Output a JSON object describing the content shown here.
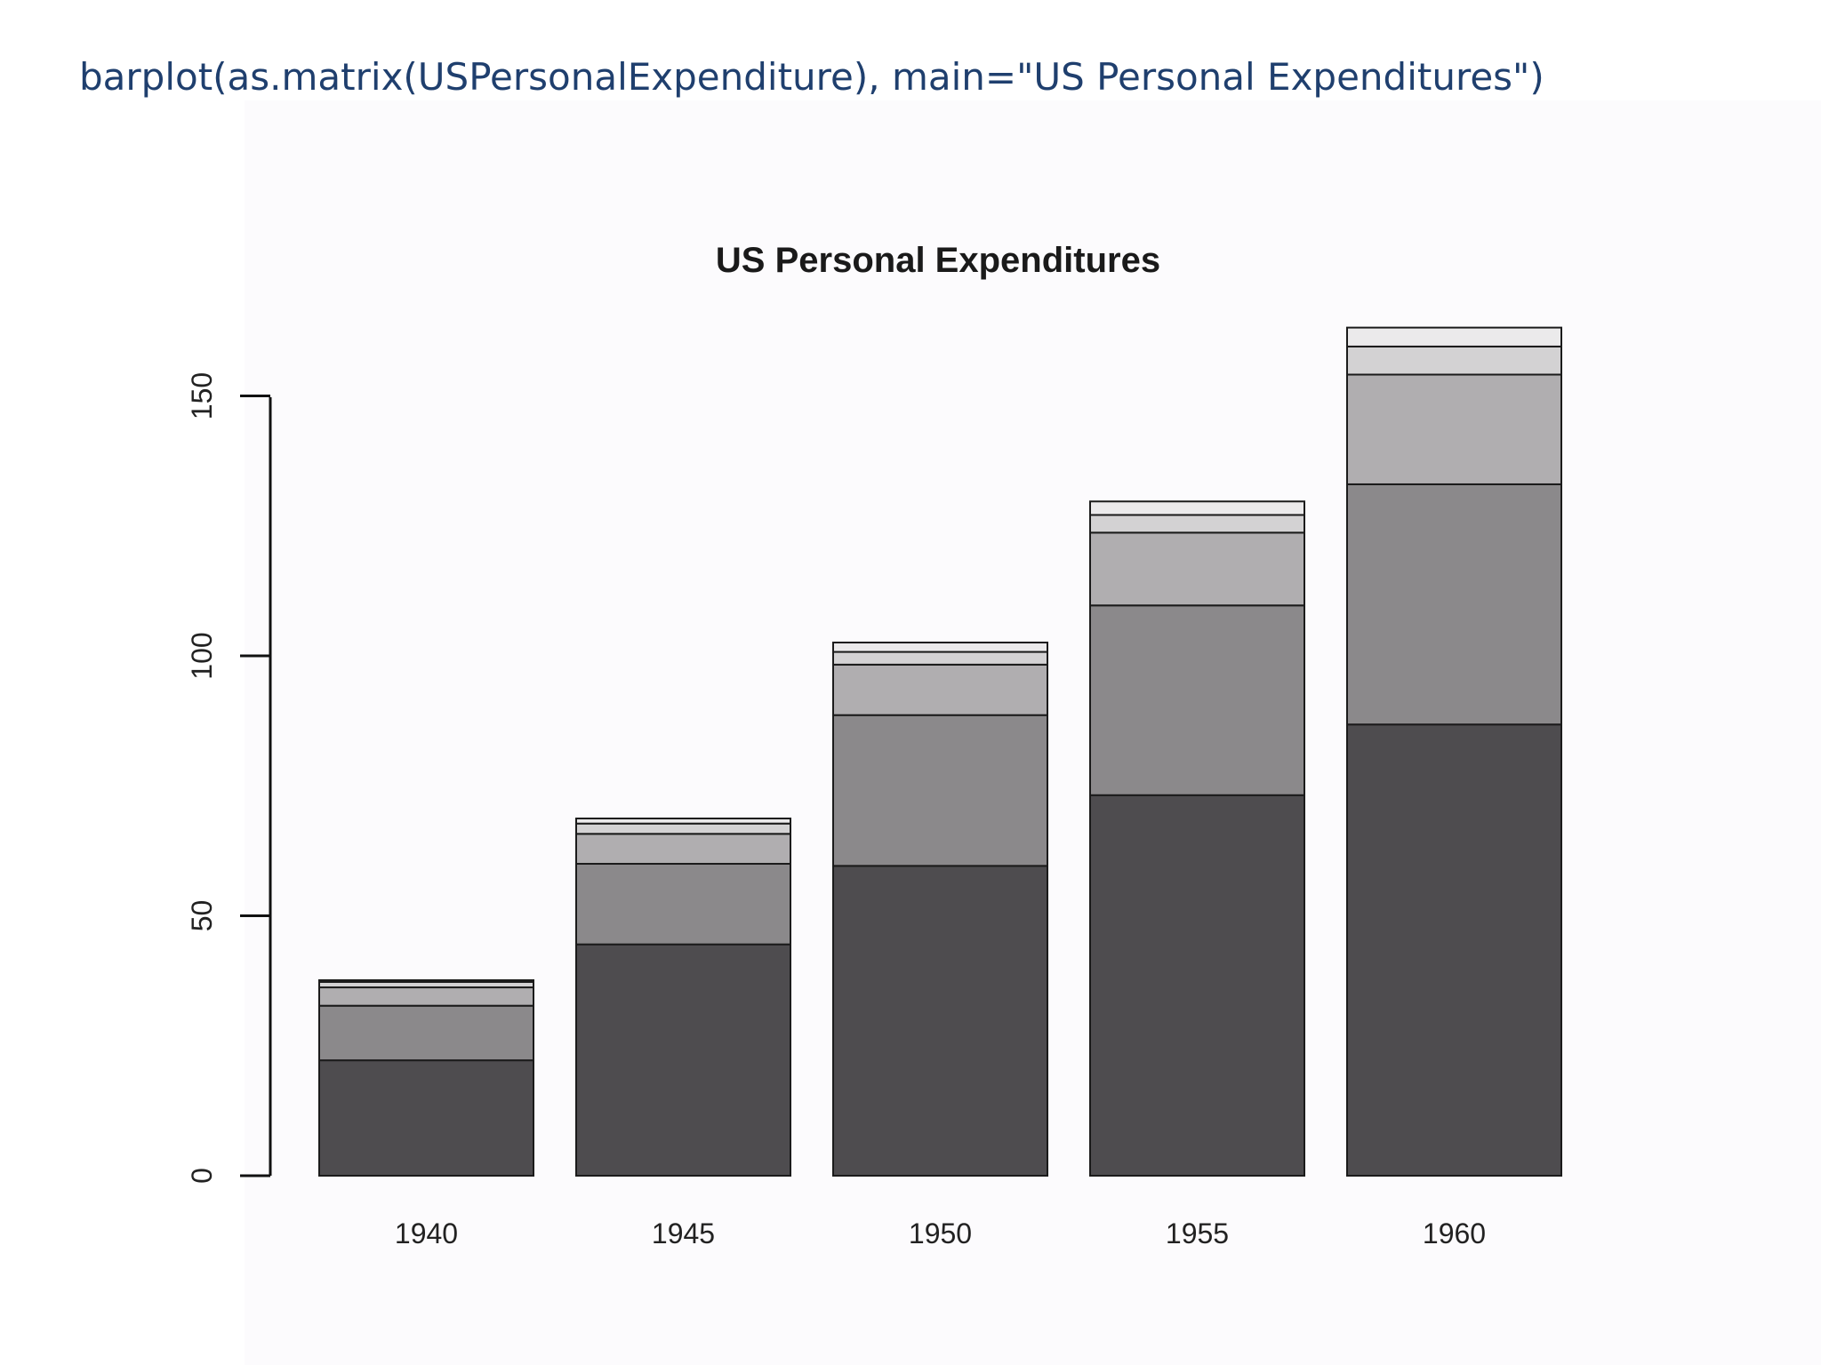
{
  "slide": {
    "code": "barplot(as.matrix(USPersonalExpenditure), main=\"US Personal Expenditures\")"
  },
  "chart_data": {
    "type": "bar",
    "stacked": true,
    "title": "US Personal Expenditures",
    "xlabel": "",
    "ylabel": "",
    "categories": [
      "1940",
      "1945",
      "1950",
      "1955",
      "1960"
    ],
    "ylim": [
      0,
      165
    ],
    "yticks": [
      0,
      50,
      100,
      150
    ],
    "grid": false,
    "legend": "none",
    "series": [
      {
        "values": [
          22.2,
          44.5,
          59.6,
          73.2,
          86.8
        ],
        "color": "#4e4c4f"
      },
      {
        "values": [
          10.5,
          15.5,
          29.0,
          36.5,
          46.2
        ],
        "color": "#8b898b"
      },
      {
        "values": [
          3.53,
          5.76,
          9.71,
          14.0,
          21.1
        ],
        "color": "#b0aeb0"
      },
      {
        "values": [
          1.04,
          1.98,
          2.45,
          3.4,
          5.4
        ],
        "color": "#d3d2d3"
      },
      {
        "values": [
          0.341,
          0.974,
          1.8,
          2.6,
          3.64
        ],
        "color": "#ebeaeb"
      }
    ]
  }
}
